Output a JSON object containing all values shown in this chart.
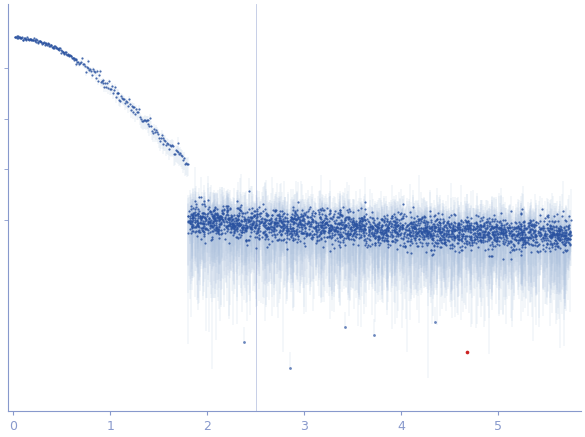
{
  "title": "",
  "xlabel": "",
  "ylabel": "",
  "xlim": [
    -0.05,
    5.85
  ],
  "ylim_low": -0.55,
  "ylim_high": 1.05,
  "x_ticks": [
    0,
    1,
    2,
    3,
    4,
    5
  ],
  "background_color": "#ffffff",
  "dot_color": "#2a52a0",
  "error_color": "#aec2df",
  "outlier_color": "#cc2222",
  "axis_color": "#8899cc",
  "tick_color": "#8899cc",
  "seed": 42,
  "Rg": 0.85,
  "I0": 0.92,
  "n_dense": 100,
  "n_trans": 120,
  "n_wide": 2800,
  "red_q": 4.68,
  "red_I": -0.32,
  "vline_x": 2.5
}
